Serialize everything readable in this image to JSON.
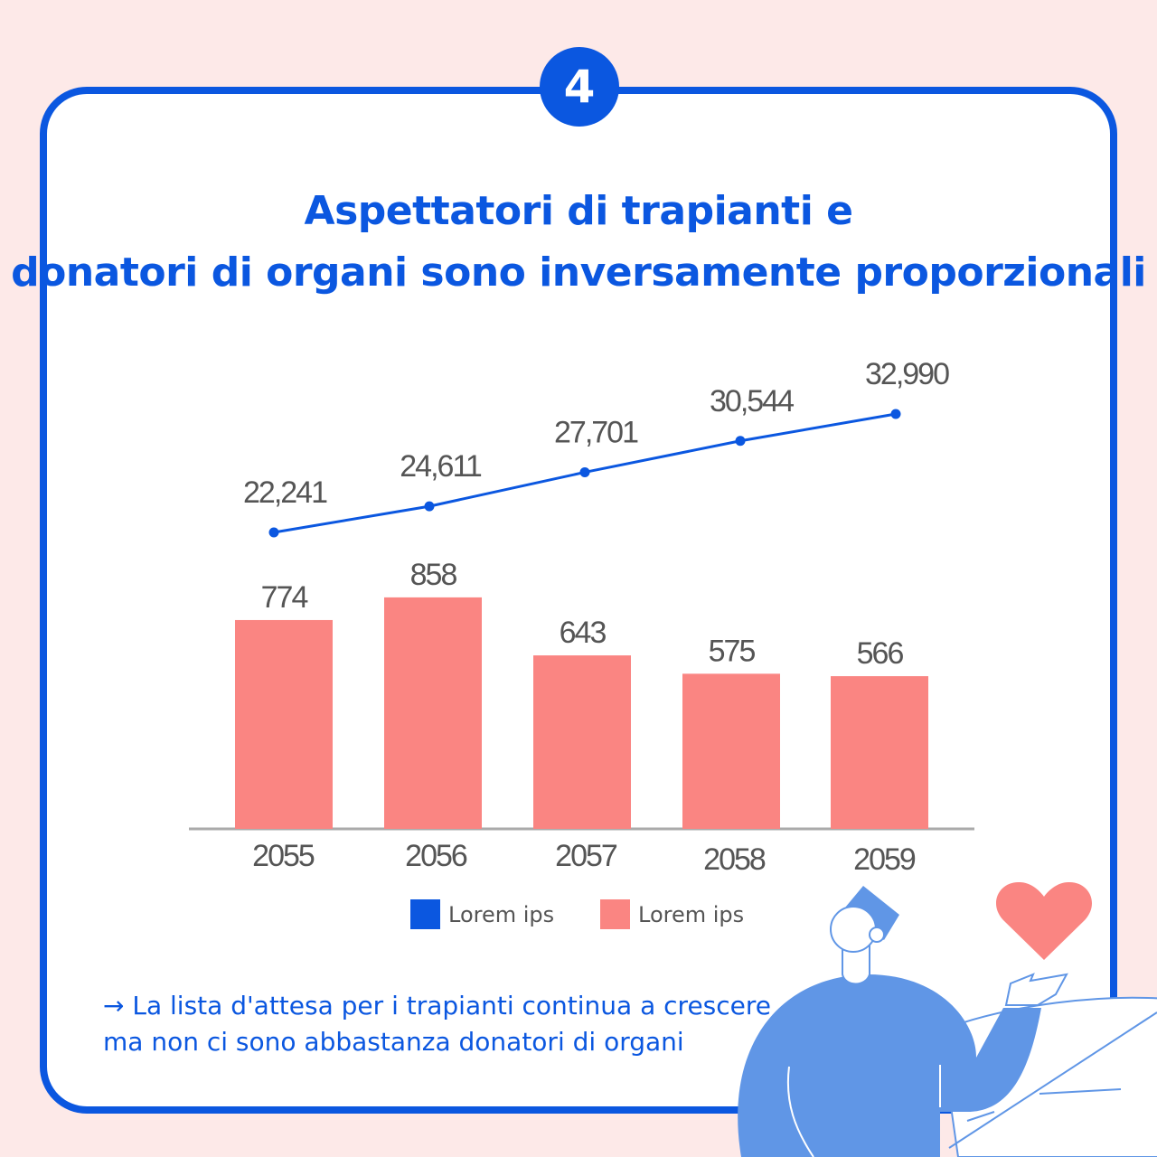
{
  "badge": "4",
  "title_line1": "Aspettatori di trapianti e",
  "title_line2": "donatori di organi sono inversamente proporzionali",
  "chart_data": {
    "type": "bar+line",
    "categories": [
      "2055",
      "2056",
      "2057",
      "2058",
      "2059"
    ],
    "series": [
      {
        "name": "Lorem ips",
        "type": "line",
        "color": "#0b57e0",
        "values": [
          22241,
          24611,
          27701,
          30544,
          32990
        ],
        "labels": [
          "22,241",
          "24,611",
          "27,701",
          "30,544",
          "32,990"
        ]
      },
      {
        "name": "Lorem ips",
        "type": "bar",
        "color": "#fa8582",
        "values": [
          774,
          858,
          643,
          575,
          566
        ],
        "labels": [
          "774",
          "858",
          "643",
          "575",
          "566"
        ]
      }
    ],
    "grid": false,
    "legend": "bottom"
  },
  "legend": [
    {
      "label": "Lorem ips",
      "color": "#0b57e0"
    },
    {
      "label": "Lorem ips",
      "color": "#fa8582"
    }
  ],
  "note_line1": "→ La lista d'attesa per i trapianti continua a crescere",
  "note_line2": "ma non ci sono abbastanza donatori di organi",
  "colors": {
    "background": "#fde9e8",
    "accent": "#0b57e0",
    "illustration": "#6096e6",
    "heart": "#fa8582"
  }
}
